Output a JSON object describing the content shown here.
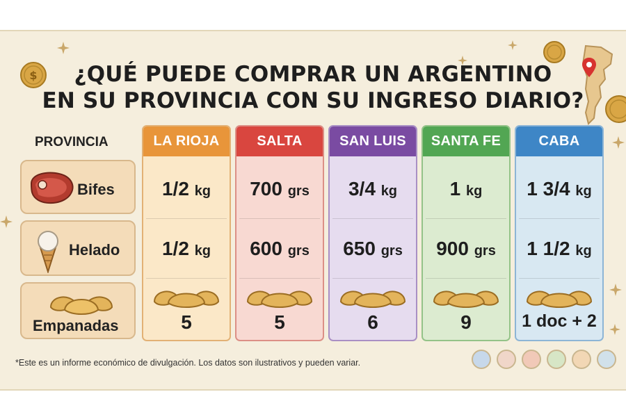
{
  "title_lines": [
    "¿QUÉ PUEDE COMPRAR UN ARGENTINO",
    "EN SU PROVINCIA CON SU INGRESO DIARIO?"
  ],
  "provincia_label": "PROVINCIA",
  "rows": [
    {
      "label": "Bifes",
      "icon": "steak-icon"
    },
    {
      "label": "Helado",
      "icon": "ice-cream-icon"
    },
    {
      "label": "Empanadas",
      "icon": "empanadas-icon"
    }
  ],
  "columns": [
    {
      "name": "LA RIOJA",
      "head_color": "#e8953a",
      "body_color": "#fbe8c8",
      "border_color": "#e2b175",
      "bifes": {
        "num": "1/2",
        "unit": "kg"
      },
      "helado": {
        "num": "1/2",
        "unit": "kg"
      },
      "empanadas": "5"
    },
    {
      "name": "SALTA",
      "head_color": "#d9463f",
      "body_color": "#f8d9d2",
      "border_color": "#dc8f86",
      "bifes": {
        "num": "700",
        "unit": "grs"
      },
      "helado": {
        "num": "600",
        "unit": "grs"
      },
      "empanadas": "5"
    },
    {
      "name": "SAN LUIS",
      "head_color": "#7a4ba2",
      "body_color": "#e6dcef",
      "border_color": "#a98fc4",
      "bifes": {
        "num": "3/4",
        "unit": "kg"
      },
      "helado": {
        "num": "650",
        "unit": "grs"
      },
      "empanadas": "6"
    },
    {
      "name": "SANTA FE",
      "head_color": "#52a653",
      "body_color": "#dcebd0",
      "border_color": "#94c388",
      "bifes": {
        "num": "1",
        "unit": "kg"
      },
      "helado": {
        "num": "900",
        "unit": "grs"
      },
      "empanadas": "9"
    },
    {
      "name": "CABA",
      "head_color": "#3e86c6",
      "body_color": "#d8e8f2",
      "border_color": "#8db5d6",
      "bifes": {
        "num": "1 3/4",
        "unit": "kg"
      },
      "helado": {
        "num": "1 1/2",
        "unit": "kg"
      },
      "empanadas": "1 doc + 2"
    }
  ],
  "footnote": "*Este es un informe económico de divulgación. Los datos son ilustrativos y pueden variar.",
  "icons": [
    "coin-icon",
    "argentina-map-icon",
    "location-pin-icon",
    "sparkle-icon",
    "region-badge-icon"
  ]
}
